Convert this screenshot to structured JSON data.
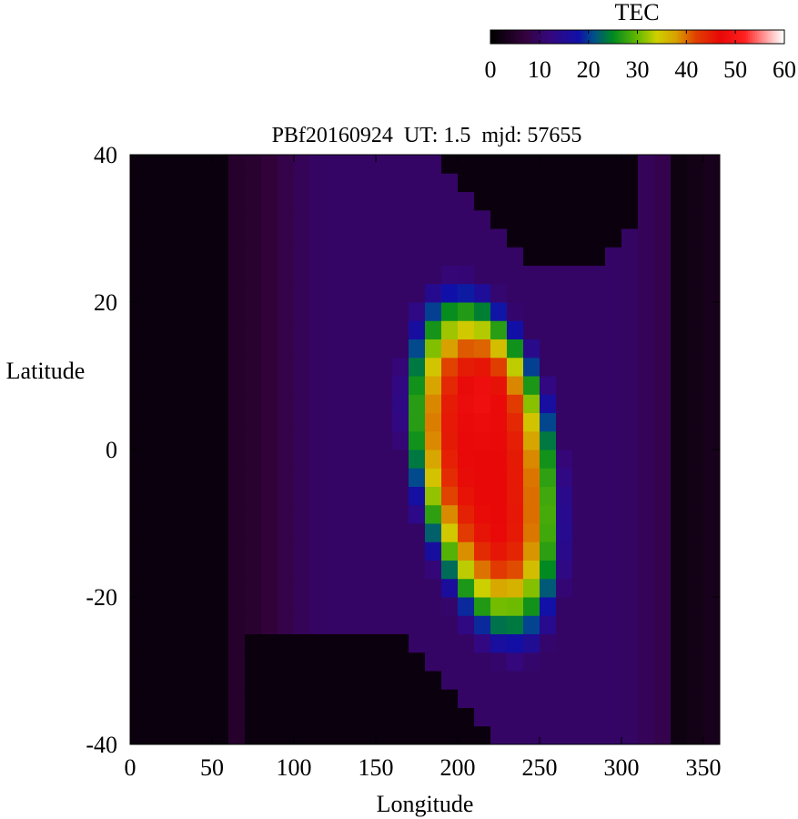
{
  "chart_data": {
    "type": "heatmap",
    "title": "PBf20160924  UT: 1.5  mjd: 57655",
    "xlabel": "Longitude",
    "ylabel": "Latitude",
    "xlim": [
      0,
      360
    ],
    "ylim": [
      -40,
      40
    ],
    "xticks": [
      "0",
      "50",
      "100",
      "150",
      "200",
      "250",
      "300",
      "350"
    ],
    "xtick_values": [
      0,
      50,
      100,
      150,
      200,
      250,
      300,
      350
    ],
    "yticks": [
      "40",
      "20",
      "0",
      "-20",
      "-40"
    ],
    "ytick_values": [
      40,
      20,
      0,
      -20,
      -40
    ],
    "colorbar": {
      "label": "TEC",
      "range": [
        0,
        60
      ],
      "ticks": [
        "0",
        "10",
        "20",
        "30",
        "40",
        "50",
        "60"
      ],
      "tick_values": [
        0,
        10,
        20,
        30,
        40,
        50,
        60
      ],
      "colormap": [
        [
          0,
          "#000000"
        ],
        [
          7,
          "#35023e"
        ],
        [
          12,
          "#34077e"
        ],
        [
          18,
          "#1010a8"
        ],
        [
          21,
          "#00508a"
        ],
        [
          25,
          "#008a20"
        ],
        [
          30,
          "#64b800"
        ],
        [
          34,
          "#cfd000"
        ],
        [
          38,
          "#d8a000"
        ],
        [
          42,
          "#e04000"
        ],
        [
          47,
          "#e80808"
        ],
        [
          52,
          "#ff2020"
        ],
        [
          57,
          "#ffb0b0"
        ],
        [
          60,
          "#ffffff"
        ]
      ]
    },
    "grid": false,
    "cell_size": {
      "dlon": 10,
      "dlat": 2.5
    },
    "tec_field": {
      "lon_count": 36,
      "lat_count": 32,
      "high_region": {
        "description_values": "peak TEC ~45 near lon 200-250, lat -20 to 15",
        "center_upper": [
          215,
          10
        ],
        "center_lower": [
          235,
          -15
        ],
        "peak_value": 45
      }
    }
  }
}
